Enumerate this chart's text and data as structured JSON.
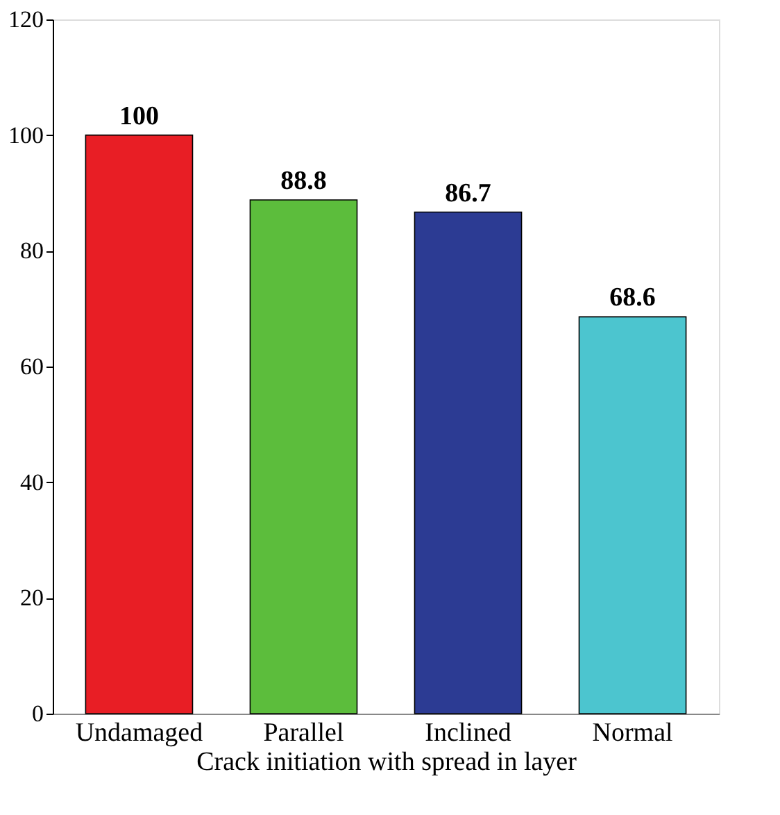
{
  "chart_data": {
    "type": "bar",
    "xlabel": "Crack initiation with spread in layer",
    "categories": [
      "Undamaged",
      "Parallel",
      "Inclined",
      "Normal"
    ],
    "values": [
      100,
      88.8,
      86.7,
      68.6
    ],
    "colors": [
      "#e81e25",
      "#5cbd3c",
      "#2c3b93",
      "#4cc5cf"
    ],
    "ylim": [
      0,
      120
    ],
    "yticks": [
      0,
      20,
      40,
      60,
      80,
      100,
      120
    ],
    "grid": false,
    "data_labels": true
  }
}
